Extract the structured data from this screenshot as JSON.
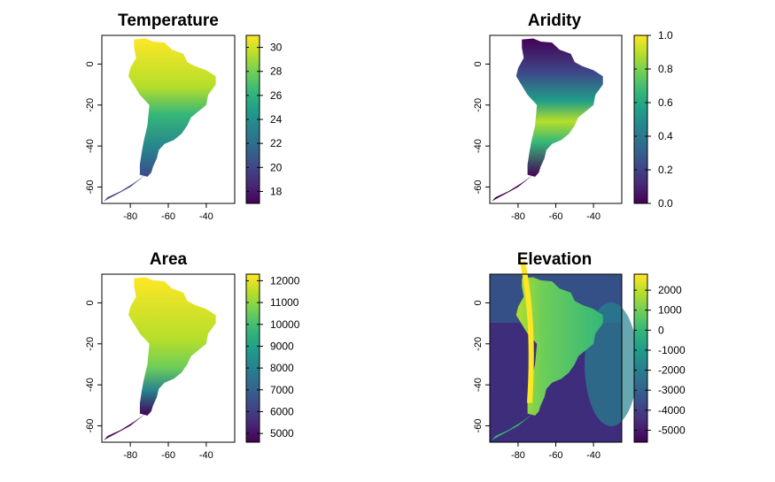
{
  "colors": {
    "viridis": [
      "#440154",
      "#482878",
      "#3e4989",
      "#31688e",
      "#26828e",
      "#1f9e89",
      "#35b779",
      "#6ece58",
      "#b5de2b",
      "#fde725"
    ]
  },
  "chart_data": [
    {
      "type": "heatmap",
      "title": "Temperature",
      "xlim": [
        -95,
        -25
      ],
      "ylim": [
        -68,
        14
      ],
      "xticks": [
        "-80",
        "-60",
        "-40"
      ],
      "yticks": [
        "0",
        "-20",
        "-40",
        "-60"
      ],
      "legend": "right",
      "colorbar": {
        "range": [
          17,
          31
        ],
        "ticks": [
          "18",
          "20",
          "22",
          "24",
          "26",
          "28",
          "30"
        ]
      }
    },
    {
      "type": "heatmap",
      "title": "Aridity",
      "xlim": [
        -95,
        -25
      ],
      "ylim": [
        -68,
        14
      ],
      "xticks": [
        "-80",
        "-60",
        "-40"
      ],
      "yticks": [
        "0",
        "-20",
        "-40",
        "-60"
      ],
      "legend": "right",
      "colorbar": {
        "range": [
          0,
          1
        ],
        "ticks": [
          "0.0",
          "0.2",
          "0.4",
          "0.6",
          "0.8",
          "1.0"
        ]
      }
    },
    {
      "type": "heatmap",
      "title": "Area",
      "xlim": [
        -95,
        -25
      ],
      "ylim": [
        -68,
        14
      ],
      "xticks": [
        "-80",
        "-60",
        "-40"
      ],
      "yticks": [
        "0",
        "-20",
        "-40",
        "-60"
      ],
      "legend": "right",
      "colorbar": {
        "range": [
          4600,
          12300
        ],
        "ticks": [
          "5000",
          "6000",
          "7000",
          "8000",
          "9000",
          "10000",
          "11000",
          "12000"
        ]
      }
    },
    {
      "type": "heatmap",
      "title": "Elevation",
      "xlim": [
        -95,
        -25
      ],
      "ylim": [
        -68,
        14
      ],
      "xticks": [
        "-80",
        "-60",
        "-40"
      ],
      "yticks": [
        "0",
        "-20",
        "-40",
        "-60"
      ],
      "legend": "right",
      "colorbar": {
        "range": [
          -5600,
          2800
        ],
        "ticks": [
          "2000",
          "1000",
          "0",
          "-1000",
          "-2000",
          "-3000",
          "-4000",
          "-5000"
        ]
      }
    }
  ]
}
